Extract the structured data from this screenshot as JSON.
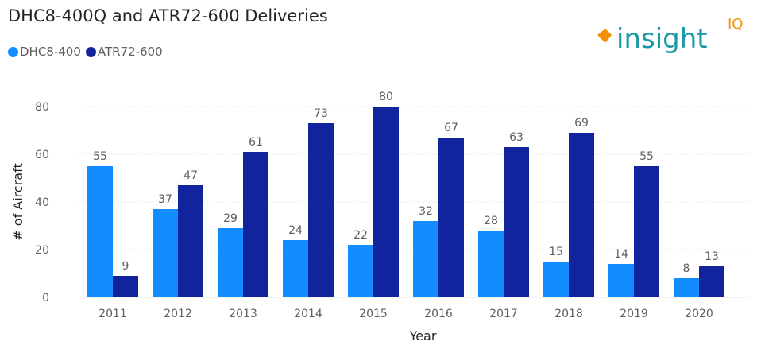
{
  "chart_data": {
    "type": "bar",
    "title": "DHC8-400Q and ATR72-600 Deliveries",
    "xlabel": "Year",
    "ylabel": "# of Aircraft",
    "categories": [
      "2011",
      "2012",
      "2013",
      "2014",
      "2015",
      "2016",
      "2017",
      "2018",
      "2019",
      "2020"
    ],
    "series": [
      {
        "name": "DHC8-400",
        "color": "#118dff",
        "values": [
          55,
          37,
          29,
          24,
          22,
          32,
          28,
          15,
          14,
          8
        ]
      },
      {
        "name": "ATR72-600",
        "color": "#12239e",
        "values": [
          9,
          47,
          61,
          73,
          80,
          67,
          63,
          69,
          55,
          13
        ]
      }
    ],
    "ylim": [
      0,
      80
    ],
    "yticks": [
      0,
      20,
      40,
      60,
      80
    ],
    "grid": true,
    "legend": "top-left",
    "data_labels": true
  },
  "logo": {
    "text": "insight",
    "superscript": "IQ",
    "text_color": "#1a9aa6",
    "mark_color": "#f39200"
  }
}
